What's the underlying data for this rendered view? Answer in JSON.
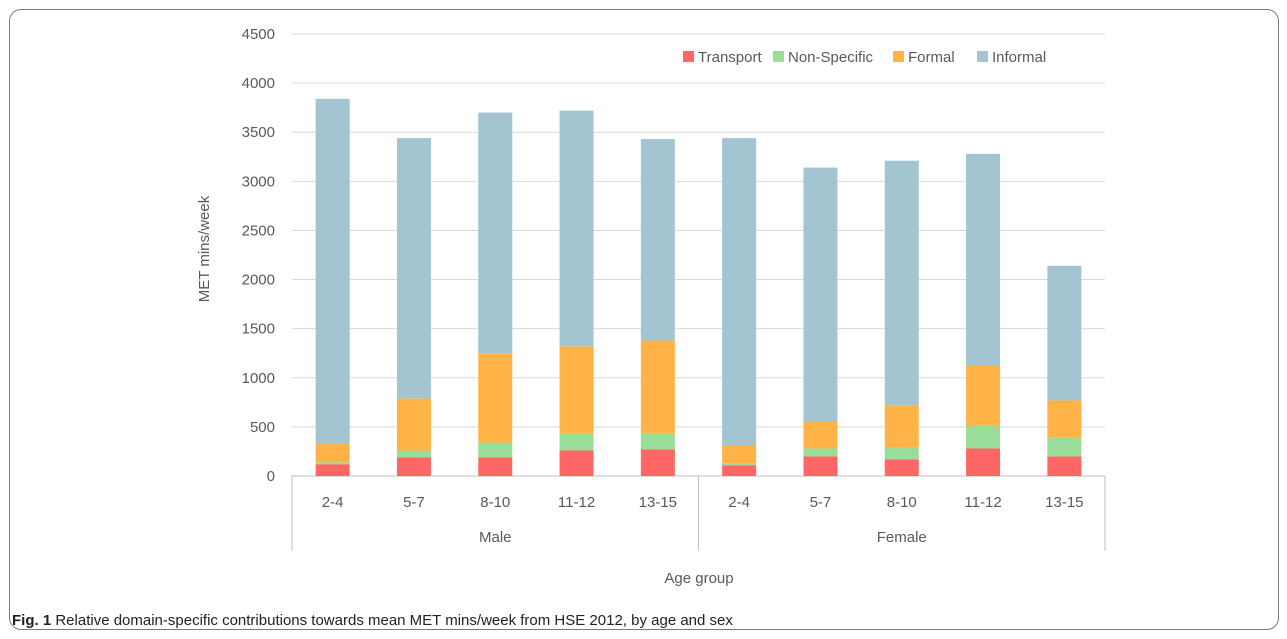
{
  "caption": {
    "label": "Fig. 1",
    "text": "Relative domain-specific contributions towards mean MET mins/week from HSE 2012, by age and sex"
  },
  "chart_data": {
    "type": "bar",
    "stacked": true,
    "ylabel": "MET mins/week",
    "xlabel": "Age group",
    "ylim": [
      0,
      4500
    ],
    "yticks": [
      0,
      500,
      1000,
      1500,
      2000,
      2500,
      3000,
      3500,
      4000,
      4500
    ],
    "grid": true,
    "legend_position": "top-right",
    "groups": [
      {
        "name": "Male",
        "categories": [
          "2-4",
          "5-7",
          "8-10",
          "11-12",
          "13-15"
        ]
      },
      {
        "name": "Female",
        "categories": [
          "2-4",
          "5-7",
          "8-10",
          "11-12",
          "13-15"
        ]
      }
    ],
    "categories": [
      "2-4",
      "5-7",
      "8-10",
      "11-12",
      "13-15",
      "2-4",
      "5-7",
      "8-10",
      "11-12",
      "13-15"
    ],
    "series": [
      {
        "name": "Transport",
        "color": "#ff6666",
        "values": [
          120,
          190,
          190,
          260,
          270,
          110,
          200,
          170,
          280,
          200
        ]
      },
      {
        "name": "Non-Specific",
        "color": "#99dd99",
        "values": [
          20,
          70,
          150,
          170,
          160,
          20,
          80,
          120,
          230,
          190
        ]
      },
      {
        "name": "Formal",
        "color": "#ffb347",
        "values": [
          190,
          530,
          910,
          890,
          950,
          180,
          280,
          430,
          610,
          380
        ]
      },
      {
        "name": "Informal",
        "color": "#a3c4d1",
        "values": [
          3510,
          2650,
          2450,
          2400,
          2050,
          3130,
          2580,
          2490,
          2160,
          1370
        ]
      }
    ]
  }
}
